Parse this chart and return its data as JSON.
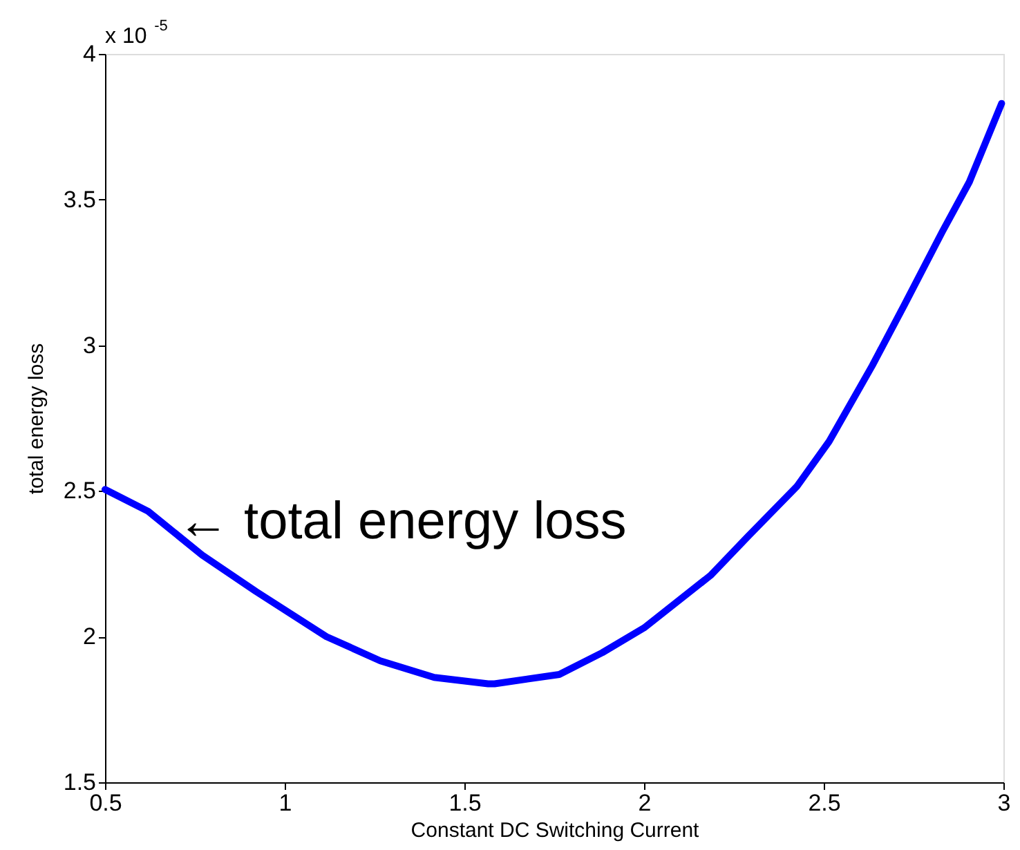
{
  "chart_data": {
    "type": "line",
    "xlabel": "Constant DC Switching Current",
    "ylabel": "total energy loss",
    "x": [
      0.5,
      0.62,
      0.77,
      0.92,
      1.116,
      1.266,
      1.416,
      1.566,
      1.584,
      1.764,
      1.884,
      2.0,
      2.185,
      2.29,
      2.425,
      2.515,
      2.635,
      2.725,
      2.83,
      2.905,
      2.995
    ],
    "series": [
      {
        "color": "#0000ff",
        "values": [
          2.505,
          2.43,
          2.28,
          2.155,
          2.0,
          1.917,
          1.86,
          1.838,
          1.838,
          1.87,
          1.945,
          2.03,
          2.21,
          2.345,
          2.515,
          2.67,
          2.93,
          3.14,
          3.39,
          3.56,
          3.83
        ]
      }
    ],
    "xlim": [
      0.5,
      3
    ],
    "xticks": [
      0.5,
      1,
      1.5,
      2,
      2.5,
      3
    ],
    "ylim": [
      1.5,
      4
    ],
    "yticks": [
      1.5,
      2,
      2.5,
      3,
      3.5,
      4
    ],
    "annotations": [
      "x 10$^{-5}$",
      {
        "text": "← total energy loss",
        "x": 0.7,
        "y": 2.39
      }
    ],
    "grid": false,
    "marker": "none",
    "line_style": "solid"
  }
}
